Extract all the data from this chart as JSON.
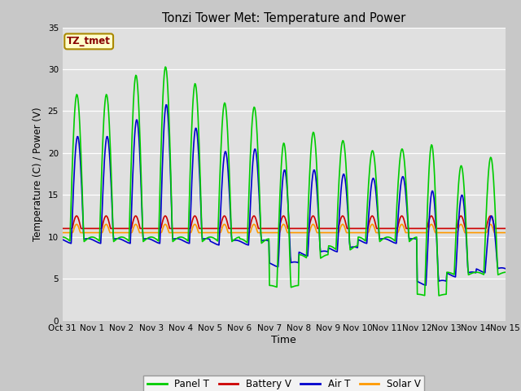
{
  "title": "Tonzi Tower Met: Temperature and Power",
  "xlabel": "Time",
  "ylabel": "Temperature (C) / Power (V)",
  "ylim": [
    0,
    35
  ],
  "yticks": [
    0,
    5,
    10,
    15,
    20,
    25,
    30,
    35
  ],
  "xlim": [
    0,
    15
  ],
  "xtick_labels": [
    "Oct 31",
    "Nov 1",
    "Nov 2",
    "Nov 3",
    "Nov 4",
    "Nov 5",
    "Nov 6",
    "Nov 7",
    "Nov 8",
    "Nov 9",
    "Nov 10",
    "Nov 11",
    "Nov 12",
    "Nov 13",
    "Nov 14",
    "Nov 15"
  ],
  "colors": {
    "panel_t": "#00cc00",
    "battery_v": "#cc0000",
    "air_t": "#0000cc",
    "solar_v": "#ff9900"
  },
  "fig_bg_color": "#c8c8c8",
  "plot_bg_color": "#e0e0e0",
  "annotation_text": "TZ_tmet",
  "annotation_color": "#880000",
  "annotation_bg": "#ffffcc",
  "annotation_edge": "#aa8800",
  "legend_labels": [
    "Panel T",
    "Battery V",
    "Air T",
    "Solar V"
  ],
  "panel_peaks": [
    27.0,
    27.0,
    29.3,
    30.3,
    28.3,
    26.0,
    25.5,
    21.2,
    22.5,
    21.5,
    20.3,
    20.5,
    21.0,
    18.5,
    19.5
  ],
  "air_peaks": [
    22.0,
    22.0,
    24.0,
    25.8,
    23.0,
    20.2,
    20.5,
    18.0,
    18.0,
    17.5,
    17.0,
    17.2,
    15.5,
    15.0,
    12.5
  ],
  "night_mins_panel": [
    9.5,
    9.5,
    9.5,
    9.5,
    9.5,
    9.5,
    9.3,
    4.0,
    7.5,
    8.5,
    9.5,
    9.5,
    3.0,
    5.5,
    5.5
  ],
  "night_mins_air": [
    9.5,
    9.5,
    9.5,
    9.5,
    9.5,
    9.3,
    9.3,
    6.7,
    8.0,
    8.5,
    9.5,
    9.5,
    4.5,
    5.5,
    6.0
  ]
}
